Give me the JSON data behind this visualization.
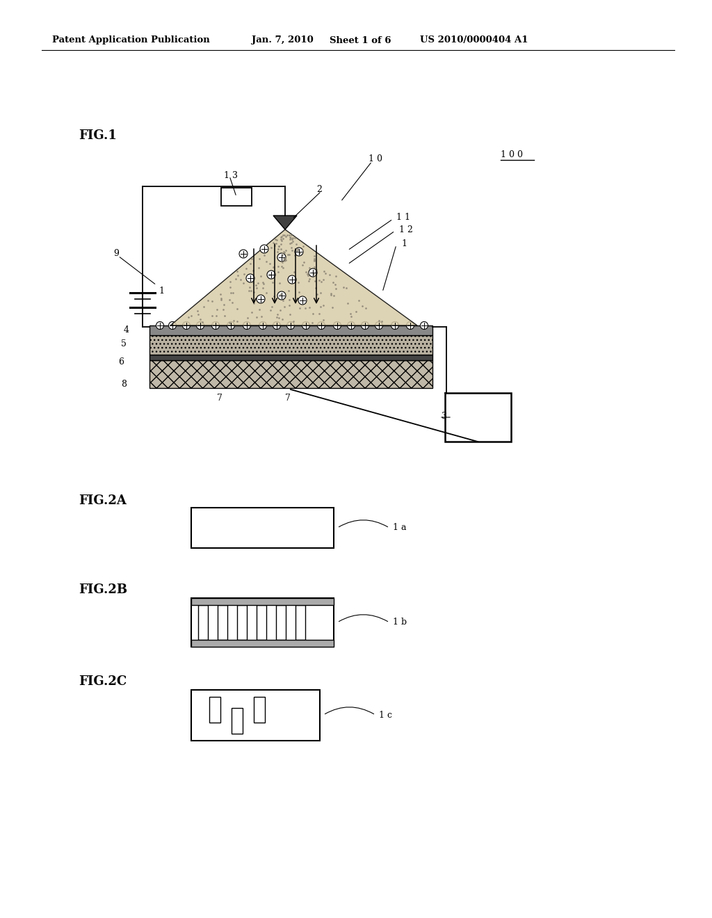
{
  "bg_color": "#ffffff",
  "line_color": "#000000",
  "header_text": "Patent Application Publication",
  "header_date": "Jan. 7, 2010",
  "header_sheet": "Sheet 1 of 6",
  "header_patent": "US 2010/0000404 A1",
  "fig1_label": "FIG.1",
  "fig2a_label": "FIG.2A",
  "fig2b_label": "FIG.2B",
  "fig2c_label": "FIG.2C",
  "ref_100": "1 0 0",
  "ref_13": "1 3",
  "ref_10": "1 0",
  "ref_2": "2",
  "ref_11": "1 1",
  "ref_12": "1 2",
  "ref_1": "1",
  "ref_9": "9",
  "ref_4": "4",
  "ref_5": "5",
  "ref_6": "6",
  "ref_8": "8",
  "ref_7": "7",
  "ref_3": "3",
  "ref_1a": "1 a",
  "ref_1b": "1 b",
  "ref_1c": "1 c",
  "layer1_color": "#888888",
  "layer2_color": "#aaaaaa",
  "layer3_color": "#555555",
  "layer4_color": "#999999",
  "cone_color": "#d8cca8"
}
